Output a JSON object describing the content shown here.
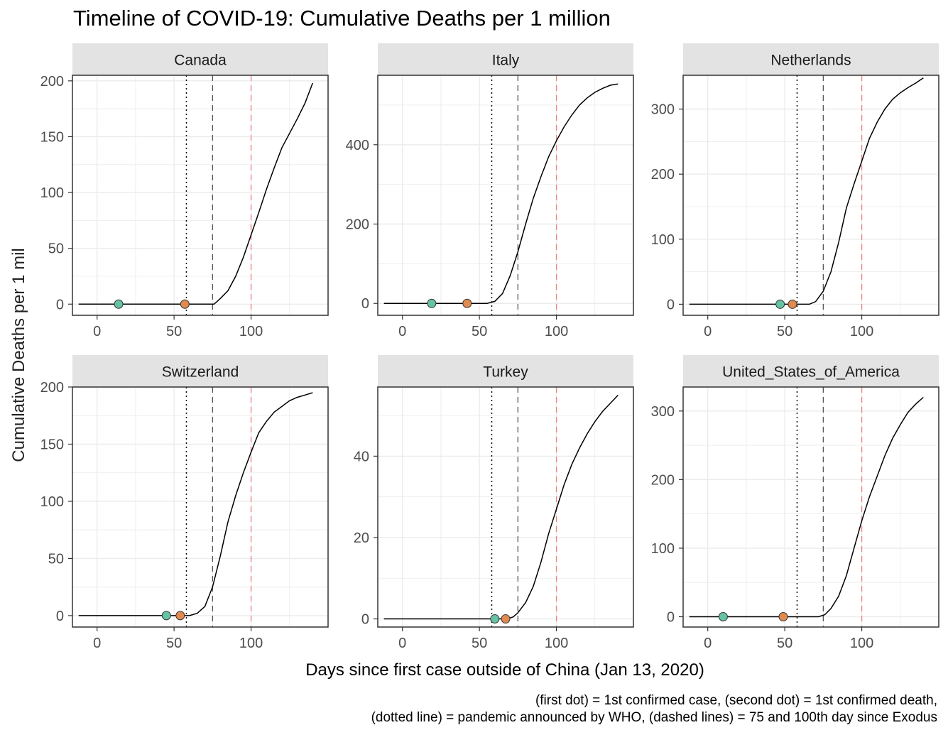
{
  "title": "Timeline of COVID-19: Cumulative Deaths per 1 million",
  "xlabel": "Days since first case outside of China (Jan 13, 2020)",
  "ylabel": "Cumulative Deaths per 1 mil",
  "caption_lines": [
    "(first dot) = 1st confirmed case, (second dot) = 1st confirmed death,",
    "(dotted line) = pandemic announced by WHO, (dashed lines) = 75 and 100th day since Exodus"
  ],
  "colors": {
    "line": "#000000",
    "first_case_dot": "#66c2a5",
    "first_death_dot": "#e08a50",
    "day100_line": "#f08080",
    "day75_line": "#555555",
    "who_line": "#000000",
    "strip_bg": "#e3e3e3",
    "grid": "#ebebeb"
  },
  "chart_data": [
    {
      "type": "line",
      "panel": "Canada",
      "xlim": [
        -16,
        150
      ],
      "ylim": [
        -10,
        205
      ],
      "x_ticks": [
        0,
        50,
        100
      ],
      "y_ticks": [
        0,
        50,
        100,
        150,
        200
      ],
      "first_case_day": 14,
      "first_death_day": 57,
      "vlines": {
        "who_dotted": 58,
        "dashed": [
          75
        ],
        "dashed_red": [
          100
        ]
      },
      "series": [
        {
          "x": [
            -12,
            76,
            80,
            85,
            90,
            95,
            100,
            105,
            110,
            115,
            120,
            125,
            130,
            135,
            140
          ],
          "y": [
            0,
            0,
            5,
            12,
            25,
            42,
            62,
            82,
            103,
            122,
            140,
            153,
            166,
            180,
            198
          ]
        }
      ]
    },
    {
      "type": "line",
      "panel": "Italy",
      "xlim": [
        -16,
        150
      ],
      "ylim": [
        -30,
        575
      ],
      "x_ticks": [
        0,
        50,
        100
      ],
      "y_ticks": [
        0,
        200,
        400
      ],
      "first_case_day": 19,
      "first_death_day": 42,
      "vlines": {
        "who_dotted": 58,
        "dashed": [
          75
        ],
        "dashed_red": [
          100
        ]
      },
      "series": [
        {
          "x": [
            -12,
            55,
            60,
            65,
            70,
            75,
            80,
            85,
            90,
            95,
            100,
            105,
            110,
            115,
            120,
            125,
            130,
            135,
            140
          ],
          "y": [
            0,
            0,
            5,
            25,
            70,
            130,
            200,
            265,
            320,
            370,
            410,
            445,
            475,
            500,
            518,
            532,
            542,
            550,
            553
          ]
        }
      ]
    },
    {
      "type": "line",
      "panel": "Netherlands",
      "xlim": [
        -16,
        150
      ],
      "ylim": [
        -17,
        352
      ],
      "x_ticks": [
        0,
        50,
        100
      ],
      "y_ticks": [
        0,
        100,
        200,
        300
      ],
      "first_case_day": 47,
      "first_death_day": 55,
      "vlines": {
        "who_dotted": 58,
        "dashed": [
          75
        ],
        "dashed_red": [
          100
        ]
      },
      "series": [
        {
          "x": [
            -12,
            66,
            70,
            75,
            80,
            85,
            90,
            95,
            100,
            105,
            110,
            115,
            120,
            125,
            130,
            135,
            140
          ],
          "y": [
            0,
            0,
            4,
            20,
            50,
            95,
            148,
            185,
            220,
            255,
            280,
            300,
            315,
            325,
            333,
            340,
            348
          ]
        }
      ]
    },
    {
      "type": "line",
      "panel": "Switzerland",
      "xlim": [
        -16,
        150
      ],
      "ylim": [
        -10,
        200
      ],
      "x_ticks": [
        0,
        50,
        100
      ],
      "y_ticks": [
        0,
        50,
        100,
        150,
        200
      ],
      "first_case_day": 45,
      "first_death_day": 54,
      "vlines": {
        "who_dotted": 58,
        "dashed": [
          75
        ],
        "dashed_red": [
          100
        ]
      },
      "series": [
        {
          "x": [
            -12,
            60,
            65,
            70,
            75,
            80,
            85,
            90,
            95,
            100,
            105,
            110,
            115,
            120,
            125,
            130,
            135,
            140
          ],
          "y": [
            0,
            0,
            2,
            8,
            25,
            52,
            82,
            105,
            125,
            143,
            160,
            170,
            178,
            183,
            188,
            191,
            193,
            195
          ]
        }
      ]
    },
    {
      "type": "line",
      "panel": "Turkey",
      "xlim": [
        -16,
        150
      ],
      "ylim": [
        -2,
        57
      ],
      "x_ticks": [
        0,
        50,
        100
      ],
      "y_ticks": [
        0,
        20,
        40
      ],
      "first_case_day": 60,
      "first_death_day": 67,
      "vlines": {
        "who_dotted": 58,
        "dashed": [
          75
        ],
        "dashed_red": [
          100
        ]
      },
      "series": [
        {
          "x": [
            -12,
            68,
            72,
            75,
            80,
            85,
            90,
            95,
            100,
            105,
            110,
            115,
            120,
            125,
            130,
            135,
            140
          ],
          "y": [
            0,
            0,
            0.5,
            1.5,
            4,
            8,
            14,
            21,
            27,
            33,
            38,
            42,
            45.5,
            48.5,
            51,
            53,
            55
          ]
        }
      ]
    },
    {
      "type": "line",
      "panel": "United_States_of_America",
      "xlim": [
        -16,
        150
      ],
      "ylim": [
        -15,
        335
      ],
      "x_ticks": [
        0,
        50,
        100
      ],
      "y_ticks": [
        0,
        100,
        200,
        300
      ],
      "first_case_day": 10,
      "first_death_day": 49,
      "vlines": {
        "who_dotted": 58,
        "dashed": [
          75
        ],
        "dashed_red": [
          100
        ]
      },
      "series": [
        {
          "x": [
            -12,
            72,
            76,
            80,
            85,
            90,
            95,
            100,
            105,
            110,
            115,
            120,
            125,
            130,
            135,
            140
          ],
          "y": [
            0,
            0,
            3,
            12,
            30,
            60,
            100,
            140,
            175,
            205,
            235,
            260,
            280,
            298,
            310,
            320
          ]
        }
      ]
    }
  ]
}
